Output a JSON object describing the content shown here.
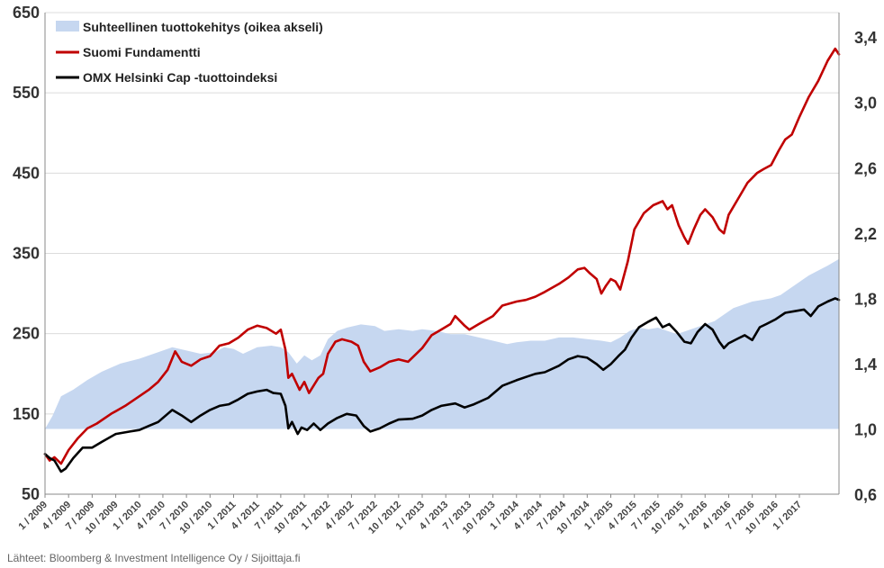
{
  "chart_data": {
    "type": "line",
    "y_left": {
      "ticks": [
        50,
        150,
        250,
        350,
        450,
        550,
        650
      ],
      "range": [
        50,
        650
      ]
    },
    "y_right": {
      "tick_labels": [
        "0,6",
        "1,0",
        "1,4",
        "1,8",
        "2,2",
        "2,6",
        "3,0",
        "3,4"
      ],
      "tick_values": [
        0.6,
        1.0,
        1.4,
        1.8,
        2.2,
        2.6,
        3.0,
        3.4
      ],
      "range": [
        0.6,
        3.55
      ]
    },
    "x_ticks": [
      "1 / 2009",
      "4 / 2009",
      "7 / 2009",
      "10 / 2009",
      "1 / 2010",
      "4 / 2010",
      "7 / 2010",
      "10 / 2010",
      "1 / 2011",
      "4 / 2011",
      "7 / 2011",
      "10 / 2011",
      "1 / 2012",
      "4 / 2012",
      "7 / 2012",
      "10 / 2012",
      "1 / 2013",
      "4 / 2013",
      "7 / 2013",
      "10 / 2013",
      "1 / 2014",
      "4 / 2014",
      "7 / 2014",
      "10 / 2014",
      "1 / 2015",
      "4 / 2015",
      "7 / 2015",
      "10 / 2015",
      "1 / 2016",
      "4 / 2016",
      "7 / 2016",
      "10 / 2016",
      "1 / 2017"
    ],
    "x_range": [
      2009.0,
      2017.42
    ],
    "grid": true,
    "legend_position": "top-left",
    "series": [
      {
        "name": "Suhteellinen tuottokehitys (oikea akseli)",
        "axis": "right",
        "style": "area",
        "color": "#c6d7f0",
        "baseline": 1.0,
        "points": [
          [
            2009.0,
            1.0
          ],
          [
            2009.08,
            1.08
          ],
          [
            2009.17,
            1.2
          ],
          [
            2009.3,
            1.24
          ],
          [
            2009.45,
            1.3
          ],
          [
            2009.6,
            1.35
          ],
          [
            2009.8,
            1.4
          ],
          [
            2010.0,
            1.43
          ],
          [
            2010.2,
            1.47
          ],
          [
            2010.35,
            1.5
          ],
          [
            2010.5,
            1.48
          ],
          [
            2010.65,
            1.46
          ],
          [
            2010.8,
            1.47
          ],
          [
            2010.9,
            1.5
          ],
          [
            2011.0,
            1.49
          ],
          [
            2011.1,
            1.46
          ],
          [
            2011.25,
            1.5
          ],
          [
            2011.4,
            1.51
          ],
          [
            2011.5,
            1.5
          ],
          [
            2011.58,
            1.47
          ],
          [
            2011.67,
            1.4
          ],
          [
            2011.75,
            1.45
          ],
          [
            2011.83,
            1.42
          ],
          [
            2011.92,
            1.45
          ],
          [
            2012.0,
            1.55
          ],
          [
            2012.1,
            1.6
          ],
          [
            2012.2,
            1.62
          ],
          [
            2012.35,
            1.64
          ],
          [
            2012.5,
            1.63
          ],
          [
            2012.6,
            1.6
          ],
          [
            2012.75,
            1.61
          ],
          [
            2012.9,
            1.6
          ],
          [
            2013.0,
            1.61
          ],
          [
            2013.15,
            1.6
          ],
          [
            2013.3,
            1.58
          ],
          [
            2013.45,
            1.58
          ],
          [
            2013.6,
            1.56
          ],
          [
            2013.75,
            1.54
          ],
          [
            2013.9,
            1.52
          ],
          [
            2014.0,
            1.53
          ],
          [
            2014.15,
            1.54
          ],
          [
            2014.3,
            1.54
          ],
          [
            2014.45,
            1.56
          ],
          [
            2014.6,
            1.56
          ],
          [
            2014.75,
            1.55
          ],
          [
            2014.9,
            1.54
          ],
          [
            2015.0,
            1.53
          ],
          [
            2015.1,
            1.56
          ],
          [
            2015.2,
            1.6
          ],
          [
            2015.3,
            1.62
          ],
          [
            2015.4,
            1.61
          ],
          [
            2015.5,
            1.62
          ],
          [
            2015.6,
            1.6
          ],
          [
            2015.7,
            1.58
          ],
          [
            2015.8,
            1.6
          ],
          [
            2015.9,
            1.62
          ],
          [
            2016.0,
            1.64
          ],
          [
            2016.1,
            1.66
          ],
          [
            2016.2,
            1.7
          ],
          [
            2016.3,
            1.74
          ],
          [
            2016.4,
            1.76
          ],
          [
            2016.5,
            1.78
          ],
          [
            2016.6,
            1.79
          ],
          [
            2016.7,
            1.8
          ],
          [
            2016.8,
            1.82
          ],
          [
            2016.9,
            1.86
          ],
          [
            2017.0,
            1.9
          ],
          [
            2017.1,
            1.94
          ],
          [
            2017.2,
            1.97
          ],
          [
            2017.3,
            2.0
          ],
          [
            2017.42,
            2.04
          ]
        ]
      },
      {
        "name": "Suomi Fundamentti",
        "axis": "left",
        "style": "line",
        "color": "#c00000",
        "points": [
          [
            2009.0,
            100
          ],
          [
            2009.05,
            92
          ],
          [
            2009.1,
            96
          ],
          [
            2009.17,
            88
          ],
          [
            2009.25,
            105
          ],
          [
            2009.35,
            120
          ],
          [
            2009.45,
            132
          ],
          [
            2009.55,
            138
          ],
          [
            2009.7,
            150
          ],
          [
            2009.85,
            160
          ],
          [
            2010.0,
            172
          ],
          [
            2010.1,
            180
          ],
          [
            2010.2,
            190
          ],
          [
            2010.3,
            205
          ],
          [
            2010.38,
            228
          ],
          [
            2010.45,
            215
          ],
          [
            2010.55,
            210
          ],
          [
            2010.65,
            218
          ],
          [
            2010.75,
            222
          ],
          [
            2010.85,
            235
          ],
          [
            2010.95,
            238
          ],
          [
            2011.05,
            245
          ],
          [
            2011.15,
            255
          ],
          [
            2011.25,
            260
          ],
          [
            2011.35,
            257
          ],
          [
            2011.45,
            250
          ],
          [
            2011.5,
            255
          ],
          [
            2011.55,
            230
          ],
          [
            2011.58,
            195
          ],
          [
            2011.62,
            200
          ],
          [
            2011.7,
            180
          ],
          [
            2011.75,
            190
          ],
          [
            2011.8,
            176
          ],
          [
            2011.9,
            195
          ],
          [
            2011.95,
            200
          ],
          [
            2012.0,
            225
          ],
          [
            2012.08,
            240
          ],
          [
            2012.15,
            243
          ],
          [
            2012.25,
            240
          ],
          [
            2012.32,
            235
          ],
          [
            2012.38,
            215
          ],
          [
            2012.45,
            203
          ],
          [
            2012.55,
            208
          ],
          [
            2012.65,
            215
          ],
          [
            2012.75,
            218
          ],
          [
            2012.85,
            215
          ],
          [
            2013.0,
            232
          ],
          [
            2013.1,
            248
          ],
          [
            2013.2,
            255
          ],
          [
            2013.3,
            262
          ],
          [
            2013.35,
            272
          ],
          [
            2013.45,
            260
          ],
          [
            2013.5,
            255
          ],
          [
            2013.6,
            262
          ],
          [
            2013.75,
            272
          ],
          [
            2013.85,
            285
          ],
          [
            2014.0,
            290
          ],
          [
            2014.1,
            292
          ],
          [
            2014.2,
            296
          ],
          [
            2014.3,
            302
          ],
          [
            2014.45,
            312
          ],
          [
            2014.55,
            320
          ],
          [
            2014.65,
            330
          ],
          [
            2014.72,
            332
          ],
          [
            2014.78,
            325
          ],
          [
            2014.85,
            318
          ],
          [
            2014.9,
            300
          ],
          [
            2014.95,
            310
          ],
          [
            2015.0,
            318
          ],
          [
            2015.05,
            315
          ],
          [
            2015.1,
            305
          ],
          [
            2015.18,
            340
          ],
          [
            2015.25,
            380
          ],
          [
            2015.35,
            400
          ],
          [
            2015.45,
            410
          ],
          [
            2015.55,
            415
          ],
          [
            2015.6,
            405
          ],
          [
            2015.65,
            410
          ],
          [
            2015.72,
            385
          ],
          [
            2015.78,
            370
          ],
          [
            2015.82,
            362
          ],
          [
            2015.88,
            380
          ],
          [
            2015.95,
            398
          ],
          [
            2016.0,
            405
          ],
          [
            2016.08,
            395
          ],
          [
            2016.15,
            380
          ],
          [
            2016.2,
            375
          ],
          [
            2016.25,
            398
          ],
          [
            2016.35,
            418
          ],
          [
            2016.45,
            438
          ],
          [
            2016.55,
            450
          ],
          [
            2016.62,
            455
          ],
          [
            2016.7,
            460
          ],
          [
            2016.78,
            478
          ],
          [
            2016.85,
            492
          ],
          [
            2016.92,
            498
          ],
          [
            2017.0,
            520
          ],
          [
            2017.1,
            545
          ],
          [
            2017.2,
            565
          ],
          [
            2017.3,
            590
          ],
          [
            2017.38,
            605
          ],
          [
            2017.42,
            598
          ]
        ]
      },
      {
        "name": "OMX Helsinki Cap -tuottoindeksi",
        "axis": "left",
        "style": "line",
        "color": "#000000",
        "points": [
          [
            2009.0,
            100
          ],
          [
            2009.05,
            95
          ],
          [
            2009.1,
            92
          ],
          [
            2009.17,
            78
          ],
          [
            2009.22,
            82
          ],
          [
            2009.3,
            95
          ],
          [
            2009.4,
            108
          ],
          [
            2009.5,
            108
          ],
          [
            2009.6,
            115
          ],
          [
            2009.75,
            125
          ],
          [
            2009.9,
            128
          ],
          [
            2010.0,
            130
          ],
          [
            2010.1,
            135
          ],
          [
            2010.2,
            140
          ],
          [
            2010.3,
            150
          ],
          [
            2010.35,
            155
          ],
          [
            2010.45,
            148
          ],
          [
            2010.55,
            140
          ],
          [
            2010.65,
            148
          ],
          [
            2010.75,
            155
          ],
          [
            2010.85,
            160
          ],
          [
            2010.95,
            162
          ],
          [
            2011.05,
            168
          ],
          [
            2011.15,
            175
          ],
          [
            2011.25,
            178
          ],
          [
            2011.35,
            180
          ],
          [
            2011.42,
            176
          ],
          [
            2011.5,
            175
          ],
          [
            2011.55,
            160
          ],
          [
            2011.58,
            132
          ],
          [
            2011.62,
            140
          ],
          [
            2011.68,
            125
          ],
          [
            2011.72,
            133
          ],
          [
            2011.78,
            130
          ],
          [
            2011.85,
            138
          ],
          [
            2011.92,
            130
          ],
          [
            2012.0,
            138
          ],
          [
            2012.1,
            145
          ],
          [
            2012.2,
            150
          ],
          [
            2012.3,
            148
          ],
          [
            2012.38,
            135
          ],
          [
            2012.45,
            128
          ],
          [
            2012.55,
            132
          ],
          [
            2012.65,
            138
          ],
          [
            2012.75,
            143
          ],
          [
            2012.9,
            144
          ],
          [
            2013.0,
            148
          ],
          [
            2013.1,
            155
          ],
          [
            2013.2,
            160
          ],
          [
            2013.35,
            163
          ],
          [
            2013.45,
            158
          ],
          [
            2013.55,
            162
          ],
          [
            2013.7,
            170
          ],
          [
            2013.85,
            185
          ],
          [
            2014.0,
            192
          ],
          [
            2014.1,
            196
          ],
          [
            2014.2,
            200
          ],
          [
            2014.3,
            202
          ],
          [
            2014.45,
            210
          ],
          [
            2014.55,
            218
          ],
          [
            2014.65,
            222
          ],
          [
            2014.75,
            220
          ],
          [
            2014.85,
            212
          ],
          [
            2014.92,
            205
          ],
          [
            2015.0,
            212
          ],
          [
            2015.08,
            222
          ],
          [
            2015.15,
            230
          ],
          [
            2015.22,
            245
          ],
          [
            2015.3,
            258
          ],
          [
            2015.4,
            265
          ],
          [
            2015.48,
            270
          ],
          [
            2015.55,
            258
          ],
          [
            2015.62,
            262
          ],
          [
            2015.7,
            252
          ],
          [
            2015.78,
            240
          ],
          [
            2015.85,
            238
          ],
          [
            2015.92,
            252
          ],
          [
            2016.0,
            262
          ],
          [
            2016.08,
            255
          ],
          [
            2016.15,
            240
          ],
          [
            2016.2,
            232
          ],
          [
            2016.25,
            238
          ],
          [
            2016.35,
            244
          ],
          [
            2016.42,
            248
          ],
          [
            2016.5,
            242
          ],
          [
            2016.58,
            258
          ],
          [
            2016.65,
            262
          ],
          [
            2016.75,
            268
          ],
          [
            2016.85,
            276
          ],
          [
            2016.95,
            278
          ],
          [
            2017.05,
            280
          ],
          [
            2017.12,
            272
          ],
          [
            2017.2,
            284
          ],
          [
            2017.3,
            290
          ],
          [
            2017.38,
            294
          ],
          [
            2017.42,
            292
          ]
        ]
      }
    ]
  },
  "source_text": "Lähteet: Bloomberg & Investment Intelligence Oy / Sijoittaja.fi"
}
